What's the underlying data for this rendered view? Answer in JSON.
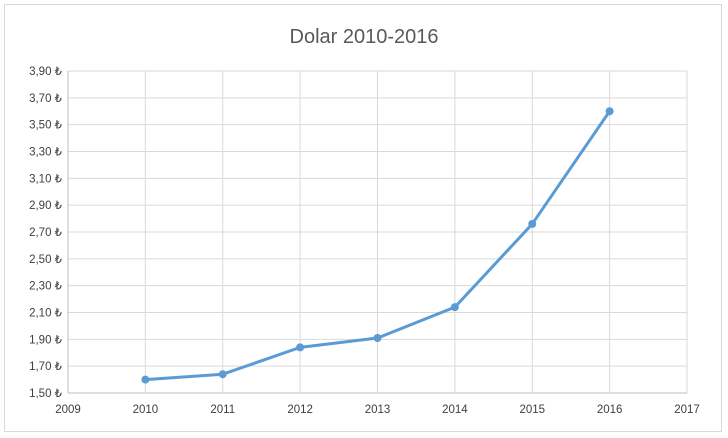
{
  "chart_data": {
    "type": "line",
    "title": "Dolar 2010-2016",
    "xlabel": "",
    "ylabel": "",
    "xlim": [
      2009,
      2017
    ],
    "ylim": [
      1.5,
      3.9
    ],
    "x_ticks": [
      "2009",
      "2010",
      "2011",
      "2012",
      "2013",
      "2014",
      "2015",
      "2016",
      "2017"
    ],
    "y_ticks": [
      "1,50 ₺",
      "1,70 ₺",
      "1,90 ₺",
      "2,10 ₺",
      "2,30 ₺",
      "2,50 ₺",
      "2,70 ₺",
      "2,90 ₺",
      "3,10 ₺",
      "3,30 ₺",
      "3,50 ₺",
      "3,70 ₺",
      "3,90 ₺"
    ],
    "grid": true,
    "legend": "none",
    "series": [
      {
        "x": [
          2010,
          2011,
          2012,
          2013,
          2014,
          2015,
          2016
        ],
        "values": [
          1.6,
          1.64,
          1.84,
          1.91,
          2.14,
          2.76,
          3.6
        ],
        "color": "#5b9bd5"
      }
    ]
  },
  "colors": {
    "grid": "#d9d9d9",
    "axis": "#bfbfbf",
    "series": "#5b9bd5"
  }
}
